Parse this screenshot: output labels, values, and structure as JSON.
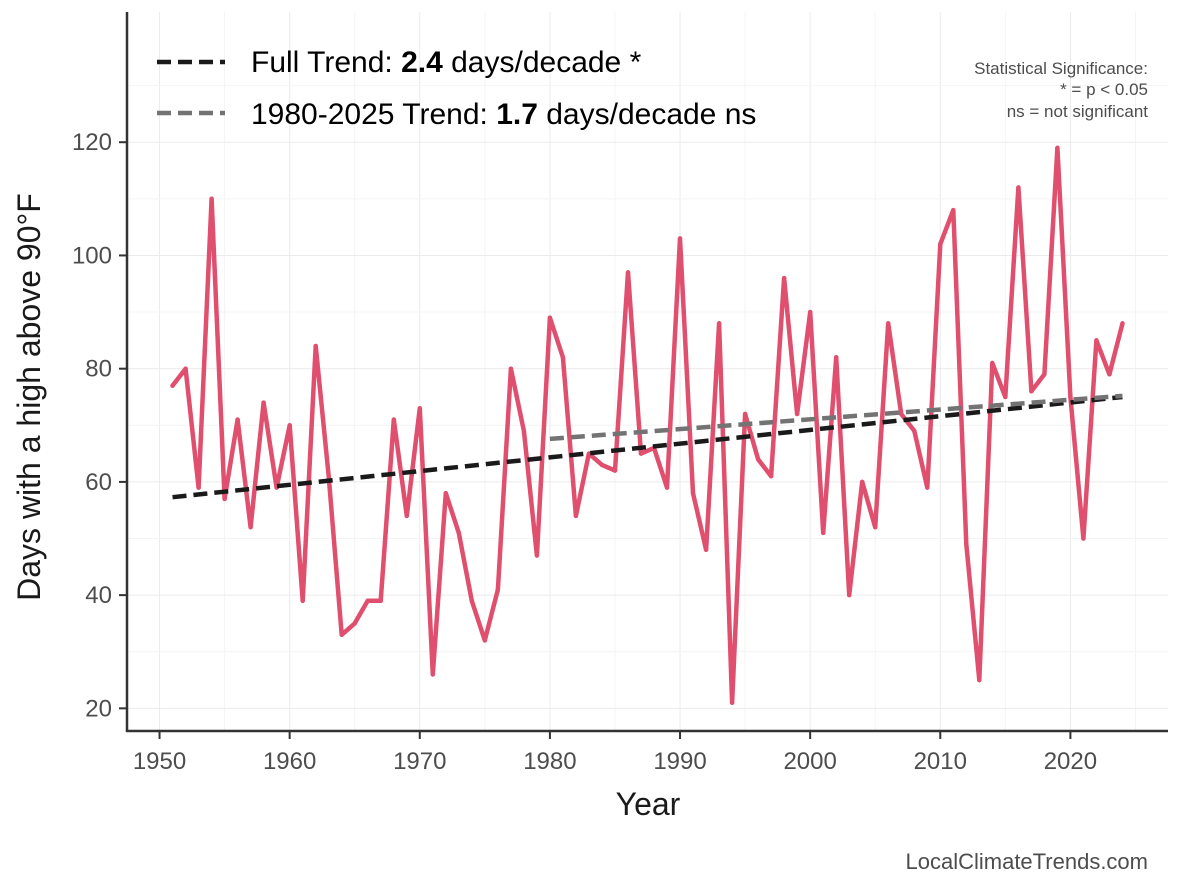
{
  "chart_data": {
    "type": "line",
    "title": "",
    "xlabel": "Year",
    "ylabel": "Days with a high above 90°F",
    "xlim": [
      1947.5,
      2027.5
    ],
    "ylim": [
      16,
      143
    ],
    "x_ticks": [
      1950,
      1960,
      1970,
      1980,
      1990,
      2000,
      2010,
      2020
    ],
    "y_ticks": [
      20,
      40,
      60,
      80,
      100,
      120
    ],
    "grid": true,
    "series": [
      {
        "name": "Days with a high above 90°F",
        "color": "#e0506e",
        "x": [
          1951,
          1952,
          1953,
          1954,
          1955,
          1956,
          1957,
          1958,
          1959,
          1960,
          1961,
          1962,
          1963,
          1964,
          1965,
          1966,
          1967,
          1968,
          1969,
          1970,
          1971,
          1972,
          1973,
          1974,
          1975,
          1976,
          1977,
          1978,
          1979,
          1980,
          1981,
          1982,
          1983,
          1984,
          1985,
          1986,
          1987,
          1988,
          1989,
          1990,
          1991,
          1992,
          1993,
          1994,
          1995,
          1996,
          1997,
          1998,
          1999,
          2000,
          2001,
          2002,
          2003,
          2004,
          2005,
          2006,
          2007,
          2008,
          2009,
          2010,
          2011,
          2012,
          2013,
          2014,
          2015,
          2016,
          2017,
          2018,
          2019,
          2020,
          2021,
          2022,
          2023,
          2024
        ],
        "values": [
          77,
          80,
          59,
          110,
          57,
          71,
          52,
          74,
          59,
          70,
          39,
          84,
          61,
          33,
          35,
          39,
          39,
          71,
          54,
          73,
          26,
          58,
          51,
          39,
          32,
          41,
          80,
          69,
          47,
          89,
          82,
          54,
          65,
          63,
          62,
          97,
          65,
          66,
          59,
          103,
          58,
          48,
          88,
          21,
          72,
          64,
          61,
          96,
          72,
          90,
          51,
          82,
          40,
          60,
          52,
          88,
          72,
          69,
          59,
          102,
          108,
          49,
          25,
          81,
          75,
          112,
          76,
          79,
          119,
          75,
          50,
          85,
          79,
          88
        ]
      }
    ],
    "trend_lines": [
      {
        "name": "Full Trend",
        "color": "#1a1a1a",
        "style": "dashed",
        "x": [
          1951,
          2024
        ],
        "values": [
          57.3,
          75.0
        ]
      },
      {
        "name": "1980-2025 Trend",
        "color": "#737373",
        "style": "dashed",
        "x": [
          1980,
          2024
        ],
        "values": [
          67.6,
          75.2
        ]
      }
    ],
    "legend": {
      "position": "top-left",
      "entries": [
        {
          "prefix": "Full Trend: ",
          "value": "2.4",
          "suffix": " days/decade *",
          "color": "#1a1a1a"
        },
        {
          "prefix": "1980-2025 Trend: ",
          "value": "1.7",
          "suffix": " days/decade ns",
          "color": "#737373"
        }
      ]
    },
    "annotations": {
      "significance": [
        "Statistical Significance:",
        "* = p < 0.05",
        "ns = not significant"
      ],
      "credit": "LocalClimateTrends.com"
    }
  }
}
